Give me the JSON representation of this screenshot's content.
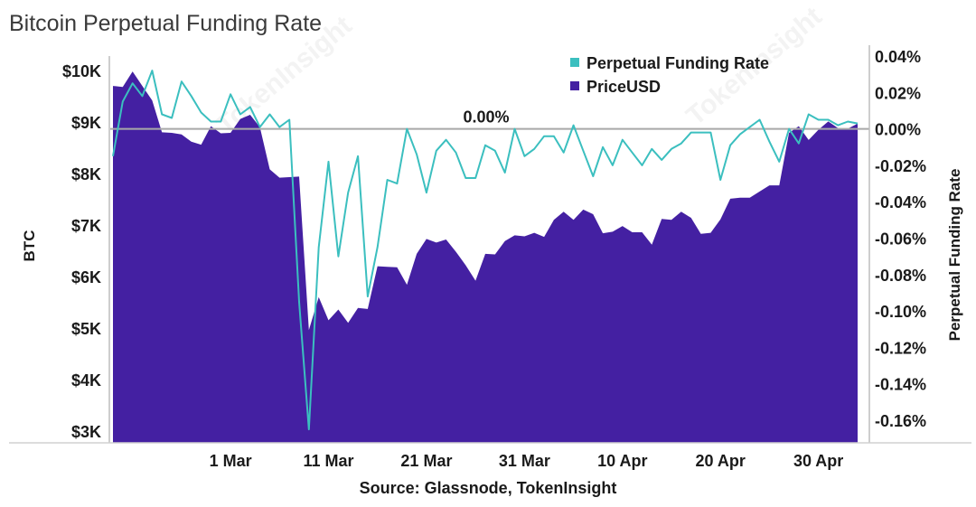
{
  "chart_data": {
    "type": "area+line",
    "title": "Bitcoin Perpetual Funding Rate",
    "source": "Source: Glassnode, TokenInsight",
    "ylabel_left": "BTC",
    "ylabel_right": "Perpetual Funding Rate",
    "zero_annotation": "0.00%",
    "left_ticks": [
      "$3K",
      "$4K",
      "$5K",
      "$6K",
      "$7K",
      "$8K",
      "$9K",
      "$10K"
    ],
    "left_tick_values": [
      3000,
      4000,
      5000,
      6000,
      7000,
      8000,
      9000,
      10000
    ],
    "right_ticks": [
      "0.04%",
      "0.02%",
      "0.00%",
      "-0.02%",
      "-0.04%",
      "-0.06%",
      "-0.08%",
      "-0.10%",
      "-0.12%",
      "-0.14%",
      "-0.16%"
    ],
    "right_tick_values": [
      0.04,
      0.02,
      0.0,
      -0.02,
      -0.04,
      -0.06,
      -0.08,
      -0.1,
      -0.12,
      -0.14,
      -0.16
    ],
    "left_ylim": [
      3000,
      10000
    ],
    "right_ylim": [
      -0.16,
      0.04
    ],
    "x_ticks": [
      "1 Mar",
      "11 Mar",
      "21 Mar",
      "31 Mar",
      "10 Apr",
      "20 Apr",
      "30 Apr"
    ],
    "x_tick_days": [
      12,
      22,
      32,
      42,
      52,
      62,
      72
    ],
    "days_range": [
      0,
      76
    ],
    "series": [
      {
        "name": "Perpetual Funding Rate",
        "color": "#3bbfbf",
        "axis": "right",
        "values": [
          -0.015,
          0.015,
          0.025,
          0.018,
          0.032,
          0.008,
          0.006,
          0.026,
          0.018,
          0.009,
          0.004,
          0.004,
          0.019,
          0.008,
          0.012,
          0.001,
          0.008,
          0.001,
          0.005,
          -0.095,
          -0.165,
          -0.065,
          -0.018,
          -0.07,
          -0.035,
          -0.015,
          -0.092,
          -0.065,
          -0.028,
          -0.03,
          0.0,
          -0.014,
          -0.035,
          -0.012,
          -0.006,
          -0.013,
          -0.027,
          -0.027,
          -0.009,
          -0.012,
          -0.024,
          0.0,
          -0.015,
          -0.011,
          -0.004,
          -0.004,
          -0.013,
          0.002,
          -0.012,
          -0.026,
          -0.01,
          -0.02,
          -0.006,
          -0.013,
          -0.02,
          -0.011,
          -0.017,
          -0.011,
          -0.008,
          -0.002,
          -0.002,
          -0.002,
          -0.028,
          -0.009,
          -0.003,
          0.001,
          0.005,
          -0.007,
          -0.018,
          0.0,
          -0.008,
          0.008,
          0.005,
          0.005,
          0.002,
          0.004,
          0.003
        ]
      },
      {
        "name": "PriceUSD",
        "color": "#4420a2",
        "axis": "left",
        "values": [
          9700,
          9680,
          9980,
          9700,
          9420,
          8800,
          8790,
          8760,
          8620,
          8560,
          8920,
          8780,
          8790,
          9060,
          9140,
          8900,
          8080,
          7920,
          7930,
          7940,
          4960,
          5600,
          5150,
          5360,
          5100,
          5390,
          5370,
          6200,
          6190,
          6180,
          5840,
          6440,
          6730,
          6660,
          6720,
          6480,
          6220,
          5920,
          6440,
          6430,
          6690,
          6800,
          6780,
          6850,
          6770,
          7100,
          7260,
          7100,
          7300,
          7210,
          6840,
          6870,
          6980,
          6860,
          6860,
          6620,
          7120,
          7100,
          7260,
          7140,
          6830,
          6850,
          7110,
          7510,
          7530,
          7530,
          7650,
          7770,
          7770,
          8790,
          8920,
          8650,
          8850,
          9010,
          8880,
          8870,
          8970
        ]
      }
    ]
  }
}
